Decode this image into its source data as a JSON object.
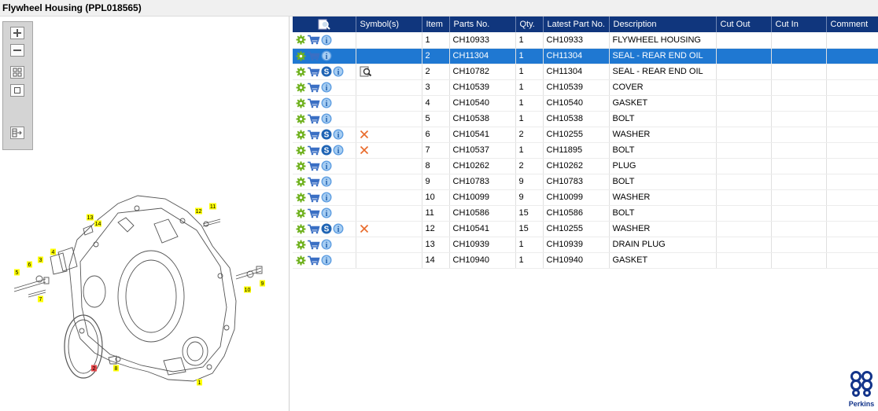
{
  "window": {
    "title": "Flywheel Housing (PPL018565)"
  },
  "toolbar": {
    "buttons": [
      "zoom-in-icon",
      "zoom-out-icon",
      "fit-all-icon",
      "fit-window-icon",
      "export-icon"
    ]
  },
  "diagram": {
    "callouts": [
      "1",
      "2",
      "3",
      "4",
      "5",
      "6",
      "7",
      "8",
      "9",
      "10",
      "11",
      "12",
      "13",
      "14"
    ],
    "highlighted_callout": "2"
  },
  "table": {
    "columns": [
      "Symbol(s)",
      "Item",
      "Parts No.",
      "Qty.",
      "Latest Part No.",
      "Description",
      "Cut Out",
      "Cut In",
      "Comment"
    ],
    "selected_row": 1,
    "rows": [
      {
        "s": false,
        "sym": "",
        "item": "1",
        "part": "CH10933",
        "qty": "1",
        "latest": "CH10933",
        "desc": "FLYWHEEL HOUSING",
        "cutout": "",
        "cutin": "",
        "comment": ""
      },
      {
        "s": false,
        "sym": "",
        "item": "2",
        "part": "CH11304",
        "qty": "1",
        "latest": "CH11304",
        "desc": "SEAL - REAR END OIL",
        "cutout": "",
        "cutin": "",
        "comment": ""
      },
      {
        "s": true,
        "sym": "search",
        "item": "2",
        "part": "CH10782",
        "qty": "1",
        "latest": "CH11304",
        "desc": "SEAL - REAR END OIL",
        "cutout": "",
        "cutin": "",
        "comment": ""
      },
      {
        "s": false,
        "sym": "",
        "item": "3",
        "part": "CH10539",
        "qty": "1",
        "latest": "CH10539",
        "desc": "COVER",
        "cutout": "",
        "cutin": "",
        "comment": ""
      },
      {
        "s": false,
        "sym": "",
        "item": "4",
        "part": "CH10540",
        "qty": "1",
        "latest": "CH10540",
        "desc": "GASKET",
        "cutout": "",
        "cutin": "",
        "comment": ""
      },
      {
        "s": false,
        "sym": "",
        "item": "5",
        "part": "CH10538",
        "qty": "1",
        "latest": "CH10538",
        "desc": "BOLT",
        "cutout": "",
        "cutin": "",
        "comment": ""
      },
      {
        "s": true,
        "sym": "cross",
        "item": "6",
        "part": "CH10541",
        "qty": "2",
        "latest": "CH10255",
        "desc": "WASHER",
        "cutout": "",
        "cutin": "",
        "comment": ""
      },
      {
        "s": true,
        "sym": "cross",
        "item": "7",
        "part": "CH10537",
        "qty": "1",
        "latest": "CH11895",
        "desc": "BOLT",
        "cutout": "",
        "cutin": "",
        "comment": ""
      },
      {
        "s": false,
        "sym": "",
        "item": "8",
        "part": "CH10262",
        "qty": "2",
        "latest": "CH10262",
        "desc": "PLUG",
        "cutout": "",
        "cutin": "",
        "comment": ""
      },
      {
        "s": false,
        "sym": "",
        "item": "9",
        "part": "CH10783",
        "qty": "9",
        "latest": "CH10783",
        "desc": "BOLT",
        "cutout": "",
        "cutin": "",
        "comment": ""
      },
      {
        "s": false,
        "sym": "",
        "item": "10",
        "part": "CH10099",
        "qty": "9",
        "latest": "CH10099",
        "desc": "WASHER",
        "cutout": "",
        "cutin": "",
        "comment": ""
      },
      {
        "s": false,
        "sym": "",
        "item": "11",
        "part": "CH10586",
        "qty": "15",
        "latest": "CH10586",
        "desc": "BOLT",
        "cutout": "",
        "cutin": "",
        "comment": ""
      },
      {
        "s": true,
        "sym": "cross",
        "item": "12",
        "part": "CH10541",
        "qty": "15",
        "latest": "CH10255",
        "desc": "WASHER",
        "cutout": "",
        "cutin": "",
        "comment": ""
      },
      {
        "s": false,
        "sym": "",
        "item": "13",
        "part": "CH10939",
        "qty": "1",
        "latest": "CH10939",
        "desc": "DRAIN PLUG",
        "cutout": "",
        "cutin": "",
        "comment": ""
      },
      {
        "s": false,
        "sym": "",
        "item": "14",
        "part": "CH10940",
        "qty": "1",
        "latest": "CH10940",
        "desc": "GASKET",
        "cutout": "",
        "cutin": "",
        "comment": ""
      }
    ]
  },
  "logo": {
    "text": "Perkins"
  },
  "colors": {
    "header": "#10367d",
    "selected": "#1f78d2",
    "callout": "#ffff00",
    "callout_highlight": "#e8474a"
  }
}
